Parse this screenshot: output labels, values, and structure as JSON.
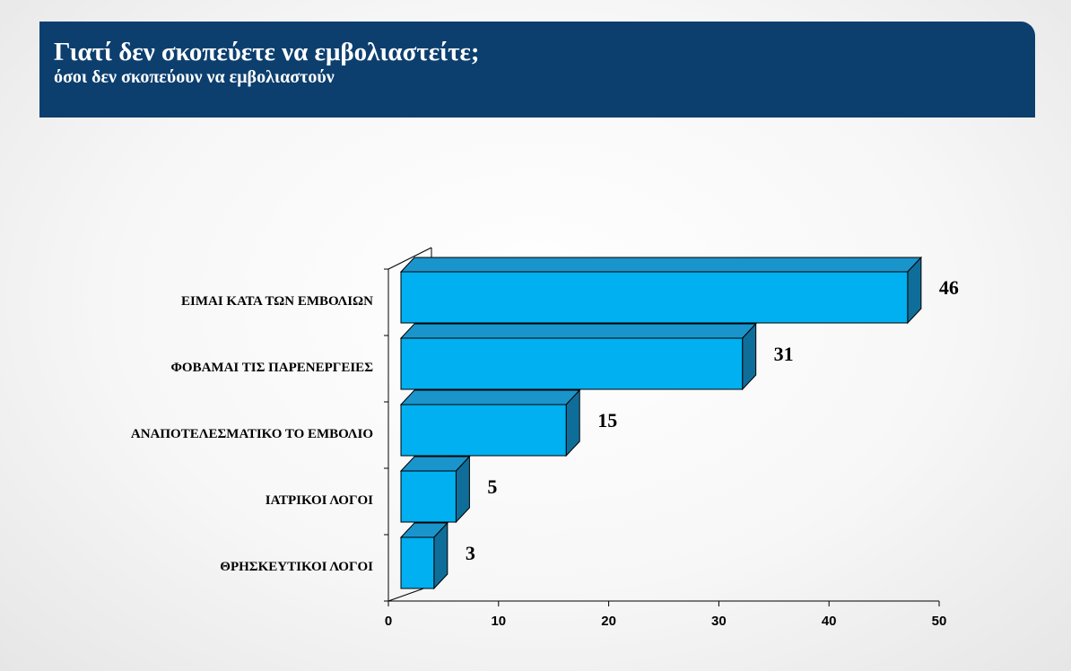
{
  "header": {
    "title": "Γιατί δεν σκοπεύετε να εμβολιαστείτε;",
    "subtitle": "όσοι δεν σκοπεύουν να εμβολιαστούν"
  },
  "chart_data": {
    "type": "bar",
    "orientation": "horizontal",
    "style": "3d",
    "categories": [
      "ΕΙΜΑΙ ΚΑΤΑ ΤΩΝ ΕΜΒΟΛΙΩΝ",
      "ΦΟΒΑΜΑΙ ΤΙΣ ΠΑΡΕΝΕΡΓΕΙΕΣ",
      "ΑΝΑΠΟΤΕΛΕΣΜΑΤΙΚΟ ΤΟ ΕΜΒΟΛΙΟ",
      "ΙΑΤΡΙΚΟΙ ΛΟΓΟΙ",
      "ΘΡΗΣΚΕΥΤΙΚΟΙ ΛΟΓΟΙ"
    ],
    "values": [
      46,
      31,
      15,
      5,
      3
    ],
    "value_labels": [
      "46",
      "31",
      "15",
      "5",
      "3"
    ],
    "xlim": [
      0,
      50
    ],
    "xticks": [
      0,
      10,
      20,
      30,
      40,
      50
    ],
    "xtick_labels": [
      "0",
      "10",
      "20",
      "30",
      "40",
      "50"
    ],
    "grid": false,
    "legend": "none",
    "colors": {
      "bar_front": "#00b0f0",
      "bar_top": "#1a95cc",
      "bar_side": "#0e6e99",
      "outline": "#000000",
      "header_bg": "#0c3f6e"
    }
  }
}
